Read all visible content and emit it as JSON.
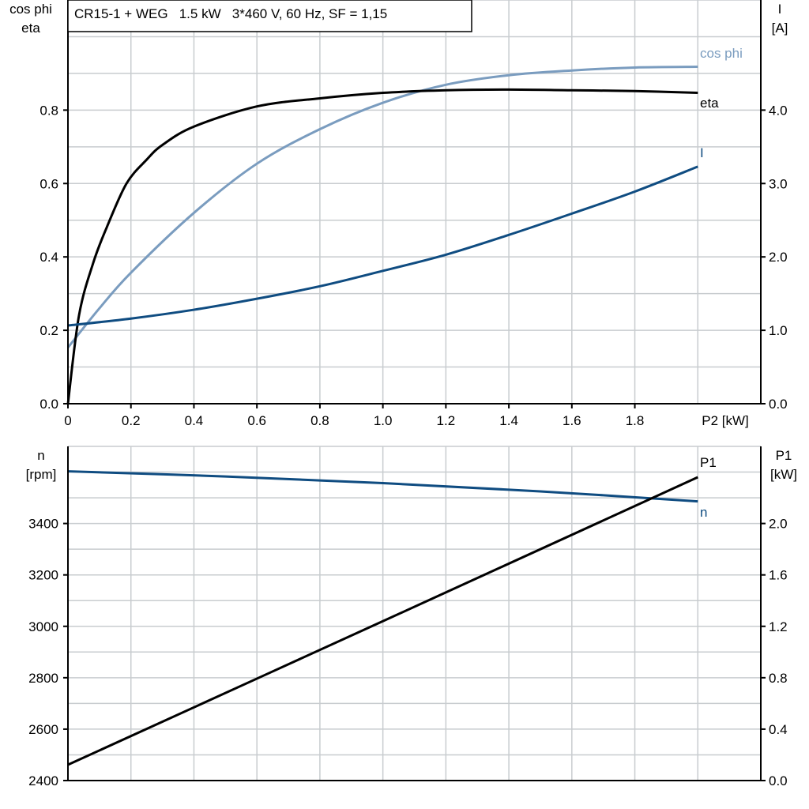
{
  "colors": {
    "cos_phi": "#7a9cbf",
    "I": "#0f4c81",
    "eta": "#000000",
    "n": "#0f4c81",
    "P1": "#000000",
    "grid": "#c8cccf"
  },
  "chart_data": [
    {
      "type": "line",
      "title": "CR15-1 + WEG   1.5 kW   3*460 V, 60 Hz, SF = 1,15",
      "xlabel": "P2 [kW]",
      "ylabel_left": [
        "cos phi",
        "eta"
      ],
      "ylabel_right": [
        "I",
        "[A]"
      ],
      "xlim": [
        0,
        2.2
      ],
      "ylim_left": [
        0,
        1.1
      ],
      "ylim_right": [
        0,
        5.5
      ],
      "x_ticks": [
        "0",
        "0.2",
        "0.4",
        "0.6",
        "0.8",
        "1.0",
        "1.2",
        "1.4",
        "1.6",
        "1.8"
      ],
      "y_left_ticks": [
        "0.0",
        "0.2",
        "0.4",
        "0.6",
        "0.8"
      ],
      "y_right_ticks": [
        "0.0",
        "1.0",
        "2.0",
        "3.0",
        "4.0"
      ],
      "grid": true,
      "series": [
        {
          "name": "cos phi",
          "axis": "left",
          "x": [
            0,
            0.1,
            0.2,
            0.4,
            0.6,
            0.8,
            1.0,
            1.2,
            1.4,
            1.6,
            1.8,
            2.0
          ],
          "y": [
            0.153,
            0.26,
            0.357,
            0.52,
            0.654,
            0.748,
            0.82,
            0.869,
            0.895,
            0.908,
            0.916,
            0.918
          ]
        },
        {
          "name": "eta",
          "axis": "left",
          "x": [
            0,
            0.035,
            0.08,
            0.123,
            0.186,
            0.25,
            0.3,
            0.4,
            0.6,
            0.8,
            1.0,
            1.2,
            1.4,
            1.6,
            1.8,
            2.0
          ],
          "y": [
            0,
            0.24,
            0.383,
            0.48,
            0.6,
            0.665,
            0.705,
            0.755,
            0.81,
            0.832,
            0.847,
            0.854,
            0.856,
            0.854,
            0.852,
            0.847
          ]
        },
        {
          "name": "I",
          "axis": "right",
          "x": [
            0,
            0.2,
            0.4,
            0.6,
            0.8,
            1.0,
            1.2,
            1.4,
            1.6,
            1.8,
            2.0
          ],
          "y": [
            1.065,
            1.16,
            1.28,
            1.43,
            1.6,
            1.81,
            2.03,
            2.3,
            2.59,
            2.89,
            3.23
          ]
        }
      ]
    },
    {
      "type": "line",
      "ylabel_left": [
        "n",
        "[rpm]"
      ],
      "ylabel_right": [
        "P1",
        "[kW]"
      ],
      "xlim": [
        0,
        2.2
      ],
      "ylim_left": [
        2400,
        3700
      ],
      "ylim_right": [
        0,
        2.6
      ],
      "y_left_ticks": [
        "2400",
        "2600",
        "2800",
        "3000",
        "3200",
        "3400"
      ],
      "y_right_ticks": [
        "0.0",
        "0.4",
        "0.8",
        "1.2",
        "1.6",
        "2.0"
      ],
      "grid": true,
      "series": [
        {
          "name": "n",
          "axis": "left",
          "x": [
            0,
            0.5,
            1.0,
            1.5,
            2.0
          ],
          "y": [
            3603,
            3583,
            3557,
            3525,
            3486
          ]
        },
        {
          "name": "P1",
          "axis": "right",
          "x": [
            0,
            1.0,
            2.0
          ],
          "y": [
            0.123,
            1.24,
            2.36
          ]
        }
      ]
    }
  ]
}
